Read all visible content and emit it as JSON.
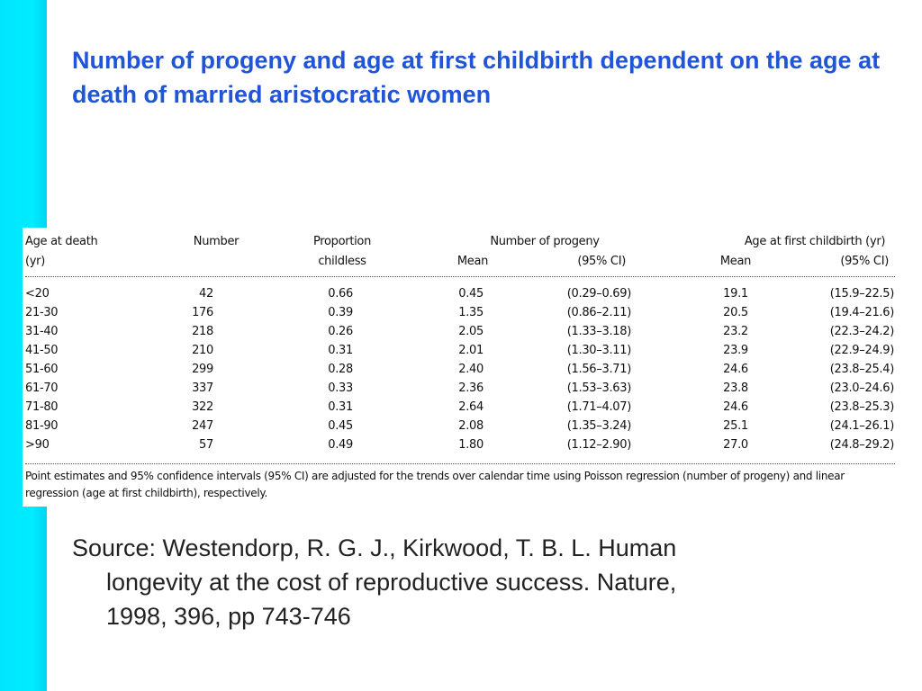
{
  "slide": {
    "title": "Number of progeny and age at first childbirth dependent on the age at death of married aristocratic women",
    "colors": {
      "title": "#1f55d6",
      "side_bar": "#00e5ff"
    },
    "source": {
      "line1": "Source:  Westendorp, R. G. J., Kirkwood, T. B. L. Human",
      "line2": "longevity at the cost of reproductive success.  Nature,",
      "line3": "1998, 396, pp 743-746"
    }
  },
  "table": {
    "headers": {
      "age_line1": "Age at death",
      "age_line2": "(yr)",
      "number": "Number",
      "prop_line1": "Proportion",
      "prop_line2": "childless",
      "progeny_group": "Number of progeny",
      "progeny_mean": "Mean",
      "progeny_ci": "(95% CI)",
      "birth_group": "Age at first childbirth (yr)",
      "birth_mean": "Mean",
      "birth_ci": "(95% CI)"
    },
    "rows": [
      {
        "age": "<20",
        "number": "42",
        "prop": "0.66",
        "pmean": "0.45",
        "pci": "(0.29–0.69)",
        "bmean": "19.1",
        "bci": "(15.9–22.5)"
      },
      {
        "age": "21-30",
        "number": "176",
        "prop": "0.39",
        "pmean": "1.35",
        "pci": "(0.86–2.11)",
        "bmean": "20.5",
        "bci": "(19.4–21.6)"
      },
      {
        "age": "31-40",
        "number": "218",
        "prop": "0.26",
        "pmean": "2.05",
        "pci": "(1.33–3.18)",
        "bmean": "23.2",
        "bci": "(22.3–24.2)"
      },
      {
        "age": "41-50",
        "number": "210",
        "prop": "0.31",
        "pmean": "2.01",
        "pci": "(1.30–3.11)",
        "bmean": "23.9",
        "bci": "(22.9–24.9)"
      },
      {
        "age": "51-60",
        "number": "299",
        "prop": "0.28",
        "pmean": "2.40",
        "pci": "(1.56–3.71)",
        "bmean": "24.6",
        "bci": "(23.8–25.4)"
      },
      {
        "age": "61-70",
        "number": "337",
        "prop": "0.33",
        "pmean": "2.36",
        "pci": "(1.53–3.63)",
        "bmean": "23.8",
        "bci": "(23.0–24.6)"
      },
      {
        "age": "71-80",
        "number": "322",
        "prop": "0.31",
        "pmean": "2.64",
        "pci": "(1.71–4.07)",
        "bmean": "24.6",
        "bci": "(23.8–25.3)"
      },
      {
        "age": "81-90",
        "number": "247",
        "prop": "0.45",
        "pmean": "2.08",
        "pci": "(1.35–3.24)",
        "bmean": "25.1",
        "bci": "(24.1–26.1)"
      },
      {
        "age": ">90",
        "number": "57",
        "prop": "0.49",
        "pmean": "1.80",
        "pci": "(1.12–2.90)",
        "bmean": "27.0",
        "bci": "(24.8–29.2)"
      }
    ],
    "footnote": "Point estimates and 95% confidence intervals (95% CI) are adjusted for the trends over calendar time using Poisson regression (number of progeny) and linear regression (age at first childbirth), respectively."
  }
}
